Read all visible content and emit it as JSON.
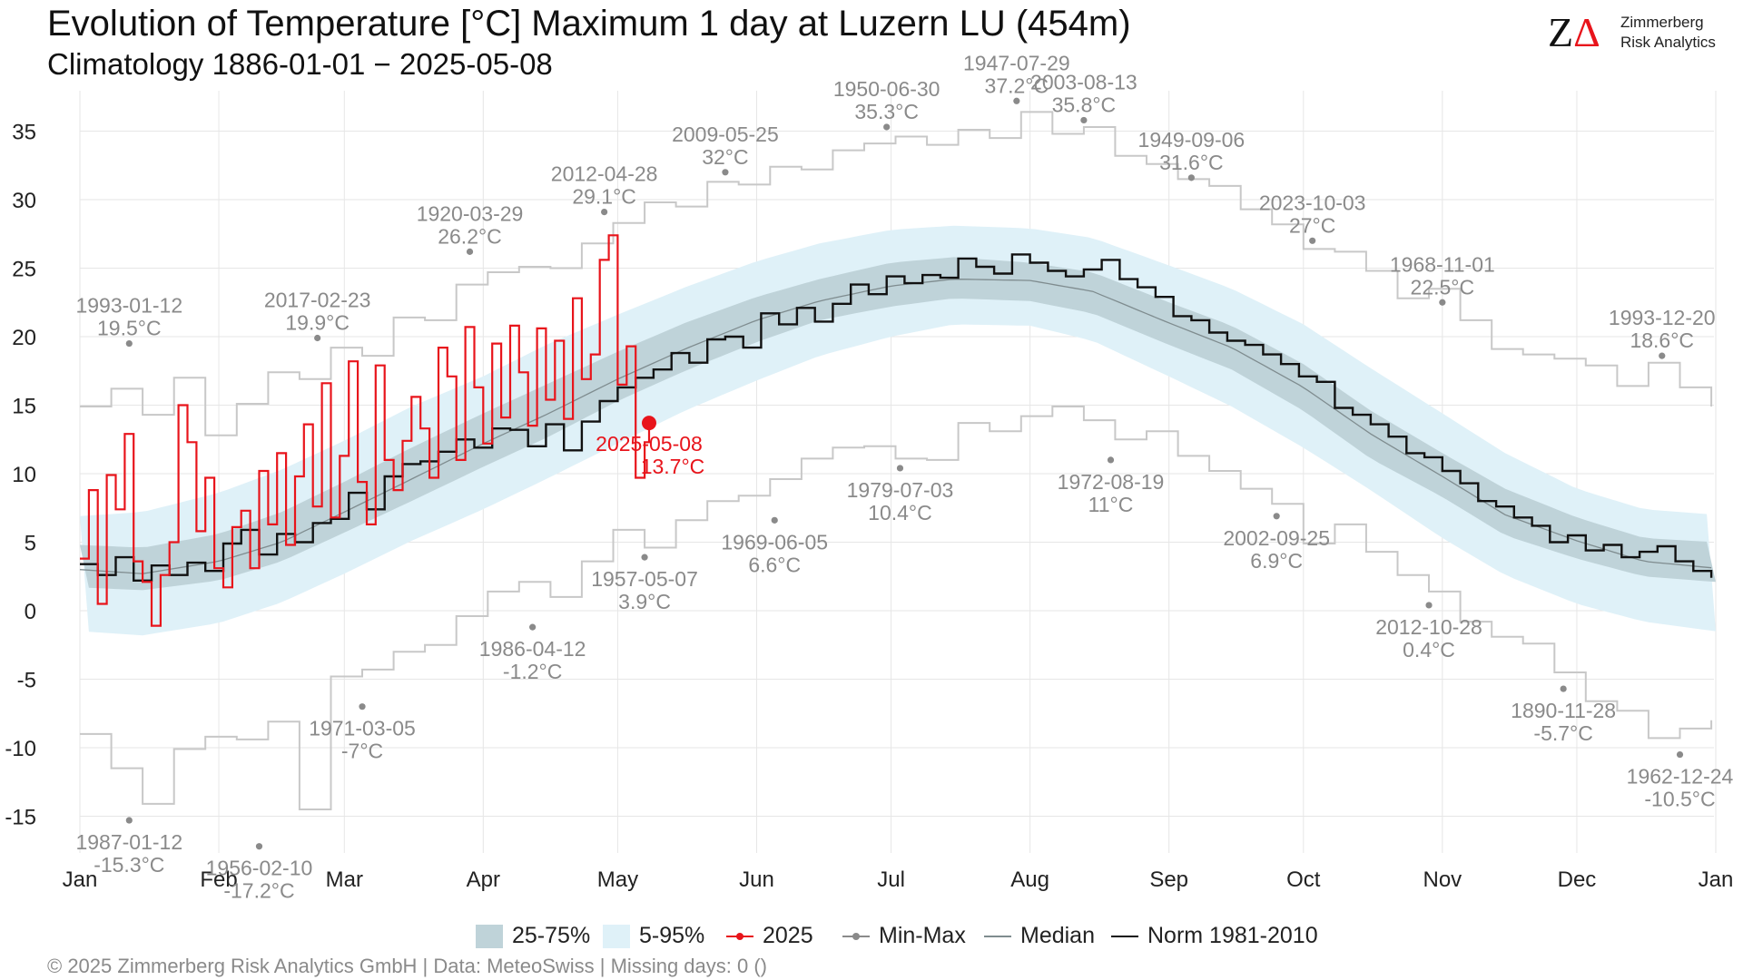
{
  "title": "Evolution of Temperature [°C] Maximum 1 day at Luzern  LU (454m)",
  "subtitle": "Climatology 1886-01-01 − 2025-05-08",
  "logo": {
    "line1": "Zimmerberg",
    "line2": "Risk Analytics",
    "mark_z": "Z",
    "mark_delta": "Δ"
  },
  "footer": "©  2025 Zimmerberg Risk Analytics GmbH | Data: MeteoSwiss | Missing days: 0 ()",
  "colors": {
    "current_year": "#e8141b",
    "norm": "#111111",
    "minmax": "#c8c8c8",
    "minmax_point": "#8a8a8a",
    "median": "#7f8c8f",
    "band_25_75": "#bfd3d9",
    "band_5_95": "#dff1f8",
    "grid": "#e6e6e6"
  },
  "legend": [
    {
      "key": "band_25_75",
      "label": "25-75%"
    },
    {
      "key": "band_5_95",
      "label": "5-95%"
    },
    {
      "key": "current_year",
      "label": "2025"
    },
    {
      "key": "minmax",
      "label": "Min-Max"
    },
    {
      "key": "median",
      "label": "Median"
    },
    {
      "key": "norm",
      "label": "Norm 1981-2010"
    }
  ],
  "chart_data": {
    "type": "line",
    "ylim": [
      -18,
      37
    ],
    "y_ticks": [
      35,
      30,
      25,
      20,
      15,
      10,
      5,
      0,
      -5,
      -10,
      -15
    ],
    "y_tick_labels": [
      "35",
      "30",
      "25",
      "20",
      "15",
      "10",
      "5",
      "0",
      "-5",
      "-10",
      "-15"
    ],
    "x_ticks": [
      "Jan",
      "Feb",
      "Mar",
      "Apr",
      "May",
      "Jun",
      "Jul",
      "Aug",
      "Sep",
      "Oct",
      "Nov",
      "Dec",
      "Jan"
    ],
    "x_tick_days": [
      1,
      32,
      60,
      91,
      121,
      152,
      182,
      213,
      244,
      274,
      305,
      335,
      366
    ],
    "current_point": {
      "day": 128,
      "value": 13.7,
      "label_date": "2025-05-08",
      "label_value": "13.7°C"
    },
    "record_max": [
      {
        "day": 12,
        "value": 19.5,
        "date": "1993-01-12",
        "label": "19.5°C"
      },
      {
        "day": 54,
        "value": 19.9,
        "date": "2017-02-23",
        "label": "19.9°C"
      },
      {
        "day": 88,
        "value": 26.2,
        "date": "1920-03-29",
        "label": "26.2°C"
      },
      {
        "day": 118,
        "value": 29.1,
        "date": "2012-04-28",
        "label": "29.1°C"
      },
      {
        "day": 145,
        "value": 32.0,
        "date": "2009-05-25",
        "label": "32°C"
      },
      {
        "day": 181,
        "value": 35.3,
        "date": "1950-06-30",
        "label": "35.3°C"
      },
      {
        "day": 210,
        "value": 37.2,
        "date": "1947-07-29",
        "label": "37.2°C"
      },
      {
        "day": 225,
        "value": 35.8,
        "date": "2003-08-13",
        "label": "35.8°C"
      },
      {
        "day": 249,
        "value": 31.6,
        "date": "1949-09-06",
        "label": "31.6°C"
      },
      {
        "day": 276,
        "value": 27.0,
        "date": "2023-10-03",
        "label": "27°C"
      },
      {
        "day": 305,
        "value": 22.5,
        "date": "1968-11-01",
        "label": "22.5°C"
      },
      {
        "day": 354,
        "value": 18.6,
        "date": "1993-12-20",
        "label": "18.6°C"
      }
    ],
    "record_min": [
      {
        "day": 12,
        "value": -15.3,
        "date": "1987-01-12",
        "label": "-15.3°C"
      },
      {
        "day": 41,
        "value": -17.2,
        "date": "1956-02-10",
        "label": "-17.2°C"
      },
      {
        "day": 64,
        "value": -7.0,
        "date": "1971-03-05",
        "label": "-7°C"
      },
      {
        "day": 102,
        "value": -1.2,
        "date": "1986-04-12",
        "label": "-1.2°C"
      },
      {
        "day": 127,
        "value": 3.9,
        "date": "1957-05-07",
        "label": "3.9°C"
      },
      {
        "day": 156,
        "value": 6.6,
        "date": "1969-06-05",
        "label": "6.6°C"
      },
      {
        "day": 184,
        "value": 10.4,
        "date": "1979-07-03",
        "label": "10.4°C"
      },
      {
        "day": 231,
        "value": 11.0,
        "date": "1972-08-19",
        "label": "11°C"
      },
      {
        "day": 268,
        "value": 6.9,
        "date": "2002-09-25",
        "label": "6.9°C"
      },
      {
        "day": 302,
        "value": 0.4,
        "date": "2012-10-28",
        "label": "0.4°C"
      },
      {
        "day": 332,
        "value": -5.7,
        "date": "1890-11-28",
        "label": "-5.7°C"
      },
      {
        "day": 358,
        "value": -10.5,
        "date": "1962-12-24",
        "label": "-10.5°C"
      }
    ],
    "median": {
      "days": [
        1,
        15,
        32,
        46,
        60,
        75,
        91,
        105,
        121,
        136,
        152,
        166,
        182,
        196,
        213,
        227,
        244,
        258,
        274,
        289,
        305,
        319,
        335,
        350,
        366
      ],
      "values": [
        3.0,
        2.7,
        3.6,
        5.0,
        7.2,
        9.6,
        12.2,
        14.3,
        16.9,
        19.1,
        21.2,
        22.6,
        23.7,
        24.2,
        24.1,
        23.3,
        21.0,
        19.2,
        16.3,
        12.9,
        9.8,
        7.0,
        5.1,
        3.6,
        3.1
      ]
    },
    "p25": {
      "days": [
        1,
        15,
        32,
        46,
        60,
        75,
        91,
        105,
        121,
        136,
        152,
        166,
        182,
        196,
        213,
        227,
        244,
        258,
        274,
        289,
        305,
        319,
        335,
        350,
        366
      ],
      "values": [
        1.7,
        1.5,
        2.2,
        3.6,
        5.7,
        8.0,
        10.5,
        12.6,
        15.3,
        17.5,
        19.6,
        21.2,
        22.2,
        22.8,
        22.6,
        21.7,
        19.4,
        17.6,
        14.6,
        11.1,
        8.3,
        5.5,
        3.8,
        2.5,
        2.1
      ]
    },
    "p75": {
      "days": [
        1,
        15,
        32,
        46,
        60,
        75,
        91,
        105,
        121,
        136,
        152,
        166,
        182,
        196,
        213,
        227,
        244,
        258,
        274,
        289,
        305,
        319,
        335,
        350,
        366
      ],
      "values": [
        4.8,
        4.6,
        5.6,
        7.2,
        9.4,
        11.9,
        14.4,
        16.5,
        18.9,
        21.0,
        22.9,
        24.2,
        25.4,
        25.8,
        25.4,
        24.7,
        22.5,
        20.8,
        18.0,
        14.6,
        11.5,
        8.9,
        6.8,
        5.3,
        5.0
      ]
    },
    "p05": {
      "days": [
        1,
        15,
        32,
        46,
        60,
        75,
        91,
        105,
        121,
        136,
        152,
        166,
        182,
        196,
        213,
        227,
        244,
        258,
        274,
        289,
        305,
        319,
        335,
        350,
        366
      ],
      "values": [
        -1.5,
        -1.8,
        -0.9,
        0.6,
        2.7,
        5.1,
        7.4,
        9.6,
        12.2,
        14.6,
        16.8,
        18.6,
        20.0,
        20.9,
        20.8,
        19.7,
        17.1,
        14.9,
        11.9,
        8.8,
        5.3,
        2.6,
        0.5,
        -0.8,
        -1.5
      ]
    },
    "p95": {
      "days": [
        1,
        15,
        32,
        46,
        60,
        75,
        91,
        105,
        121,
        136,
        152,
        166,
        182,
        196,
        213,
        227,
        244,
        258,
        274,
        289,
        305,
        319,
        335,
        350,
        366
      ],
      "values": [
        6.9,
        7.2,
        8.6,
        10.3,
        12.4,
        14.9,
        17.1,
        19.4,
        21.6,
        23.6,
        25.5,
        26.8,
        27.8,
        28.1,
        27.9,
        27.2,
        25.2,
        23.5,
        20.9,
        17.7,
        14.4,
        11.5,
        8.9,
        7.4,
        7.0
      ]
    },
    "norm_1981_2010": {
      "days": [
        1,
        5,
        9,
        13,
        17,
        21,
        25,
        29,
        33,
        37,
        41,
        45,
        49,
        53,
        57,
        61,
        65,
        69,
        73,
        77,
        81,
        85,
        89,
        93,
        97,
        101,
        105,
        109,
        113,
        117,
        121,
        125,
        129,
        133,
        137,
        141,
        145,
        149,
        153,
        157,
        161,
        165,
        169,
        173,
        177,
        181,
        185,
        189,
        193,
        197,
        201,
        205,
        209,
        213,
        217,
        221,
        225,
        229,
        233,
        237,
        241,
        245,
        249,
        253,
        257,
        261,
        265,
        269,
        273,
        277,
        281,
        285,
        289,
        293,
        297,
        301,
        305,
        309,
        313,
        317,
        321,
        325,
        329,
        333,
        337,
        341,
        345,
        349,
        353,
        357,
        361,
        365
      ],
      "values": [
        3.4,
        2.6,
        3.9,
        2.2,
        3.3,
        2.6,
        3.5,
        2.9,
        4.9,
        5.9,
        4.1,
        5.6,
        5.0,
        6.4,
        6.7,
        8.6,
        7.4,
        9.8,
        10.7,
        10.9,
        11.6,
        12.5,
        11.9,
        13.3,
        13.2,
        12.0,
        13.6,
        11.7,
        13.8,
        15.3,
        16.3,
        17.0,
        17.6,
        18.8,
        18.1,
        19.8,
        20.0,
        19.2,
        21.7,
        20.9,
        22.1,
        21.1,
        22.4,
        23.8,
        23.1,
        24.4,
        23.9,
        24.5,
        24.3,
        25.7,
        25.1,
        24.6,
        26.0,
        25.4,
        24.8,
        24.4,
        24.9,
        25.6,
        24.2,
        23.6,
        22.9,
        21.5,
        21.2,
        20.3,
        19.7,
        19.4,
        18.7,
        18.0,
        17.1,
        16.7,
        14.8,
        14.3,
        13.6,
        12.7,
        11.5,
        11.2,
        10.2,
        9.3,
        8.0,
        7.6,
        6.8,
        6.2,
        5.0,
        5.5,
        4.4,
        4.8,
        3.9,
        4.3,
        4.7,
        3.6,
        2.9,
        2.4
      ]
    },
    "year_2025": {
      "days": [
        1,
        3,
        5,
        7,
        9,
        11,
        13,
        15,
        17,
        19,
        21,
        23,
        25,
        27,
        29,
        31,
        33,
        35,
        37,
        39,
        41,
        43,
        45,
        47,
        49,
        51,
        53,
        55,
        57,
        59,
        61,
        63,
        65,
        67,
        69,
        71,
        73,
        75,
        77,
        79,
        81,
        83,
        85,
        87,
        89,
        91,
        93,
        95,
        97,
        99,
        101,
        103,
        105,
        107,
        109,
        111,
        113,
        115,
        117,
        119,
        121,
        123,
        125,
        127,
        128
      ],
      "values": [
        3.8,
        8.8,
        0.5,
        9.9,
        7.4,
        12.9,
        3.6,
        2.1,
        -1.1,
        2.6,
        5.0,
        15.0,
        12.3,
        5.8,
        9.7,
        3.1,
        1.7,
        6.1,
        7.3,
        3.1,
        10.2,
        6.3,
        11.5,
        4.8,
        9.8,
        13.6,
        7.6,
        16.6,
        6.8,
        11.3,
        18.2,
        9.4,
        6.3,
        17.9,
        11.0,
        8.8,
        12.4,
        15.6,
        13.3,
        9.7,
        19.2,
        17.1,
        11.0,
        20.7,
        16.3,
        12.2,
        19.5,
        14.1,
        20.8,
        17.4,
        13.5,
        20.6,
        15.4,
        19.7,
        14.0,
        22.8,
        16.9,
        18.7,
        25.6,
        27.4,
        16.5,
        19.3,
        9.7,
        12.3,
        13.7
      ]
    },
    "min_max_daily": {
      "max_days": [
        1,
        8,
        15,
        22,
        29,
        36,
        43,
        50,
        57,
        64,
        71,
        78,
        85,
        92,
        99,
        106,
        113,
        120,
        127,
        134,
        141,
        148,
        155,
        162,
        169,
        176,
        183,
        190,
        197,
        204,
        211,
        218,
        225,
        232,
        239,
        246,
        253,
        260,
        267,
        274,
        281,
        288,
        295,
        302,
        309,
        316,
        323,
        330,
        337,
        344,
        351,
        358,
        365
      ],
      "max_values": [
        14.9,
        16.2,
        14.3,
        17.0,
        12.8,
        15.1,
        17.4,
        16.9,
        19.2,
        18.6,
        21.4,
        21.2,
        23.8,
        24.7,
        25.1,
        25.0,
        26.8,
        28.3,
        29.8,
        29.5,
        31.3,
        31.1,
        32.4,
        32.2,
        33.6,
        34.1,
        34.6,
        34.0,
        35.1,
        34.5,
        36.4,
        34.8,
        35.3,
        33.2,
        32.6,
        31.5,
        31.0,
        29.3,
        28.2,
        26.4,
        26.2,
        24.8,
        22.8,
        23.5,
        21.2,
        19.1,
        18.7,
        18.4,
        17.9,
        16.4,
        18.1,
        16.3,
        14.9
      ],
      "min_days": [
        1,
        8,
        15,
        22,
        29,
        36,
        43,
        50,
        57,
        64,
        71,
        78,
        85,
        92,
        99,
        106,
        113,
        120,
        127,
        134,
        141,
        148,
        155,
        162,
        169,
        176,
        183,
        190,
        197,
        204,
        211,
        218,
        225,
        232,
        239,
        246,
        253,
        260,
        267,
        274,
        281,
        288,
        295,
        302,
        309,
        316,
        323,
        330,
        337,
        344,
        351,
        358,
        365
      ],
      "min_values": [
        -9.0,
        -11.5,
        -14.1,
        -10.1,
        -9.2,
        -9.4,
        -8.1,
        -14.5,
        -4.8,
        -4.3,
        -3.0,
        -2.5,
        -0.4,
        1.4,
        2.1,
        1.0,
        3.6,
        5.9,
        4.6,
        6.6,
        8.0,
        8.4,
        9.6,
        11.1,
        11.9,
        12.0,
        11.1,
        11.0,
        13.7,
        13.1,
        14.2,
        14.9,
        13.9,
        12.5,
        13.1,
        11.3,
        10.2,
        8.9,
        7.8,
        4.9,
        6.3,
        4.3,
        2.6,
        1.4,
        -0.8,
        -1.9,
        -2.4,
        -4.5,
        -6.6,
        -7.3,
        -9.3,
        -8.6,
        -8.0
      ]
    }
  }
}
